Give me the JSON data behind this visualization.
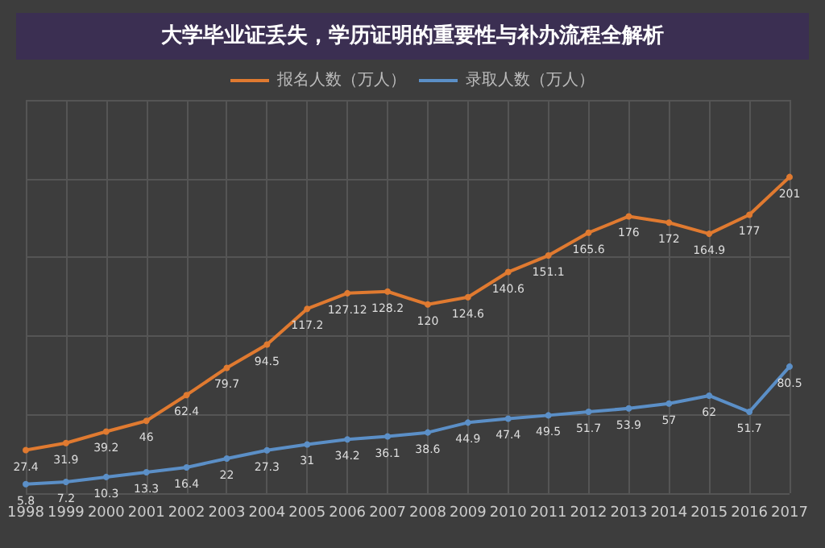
{
  "chart_data": {
    "type": "line",
    "title": "大学毕业证丢失，学历证明的重要性与补办流程全解析",
    "categories": [
      "1998",
      "1999",
      "2000",
      "2001",
      "2002",
      "2003",
      "2004",
      "2005",
      "2006",
      "2007",
      "2008",
      "2009",
      "2010",
      "2011",
      "2012",
      "2013",
      "2014",
      "2015",
      "2016",
      "2017"
    ],
    "series": [
      {
        "name": "报名人数（万人）",
        "color": "#e07a30",
        "values": [
          27.4,
          31.9,
          39.2,
          46,
          62.4,
          79.7,
          94.5,
          117.2,
          127.12,
          128.2,
          120,
          124.6,
          140.6,
          151.1,
          165.6,
          176,
          172,
          164.9,
          177,
          201
        ]
      },
      {
        "name": "录取人数（万人）",
        "color": "#5b8fc7",
        "values": [
          5.8,
          7.2,
          10.3,
          13.3,
          16.4,
          22,
          27.3,
          31,
          34.2,
          36.1,
          38.6,
          44.9,
          47.4,
          49.5,
          51.7,
          53.9,
          57,
          62,
          51.7,
          80.5
        ]
      }
    ],
    "data_labels": true,
    "grid": true,
    "legend": "top",
    "marker": "circle",
    "tick_labels": "x"
  }
}
